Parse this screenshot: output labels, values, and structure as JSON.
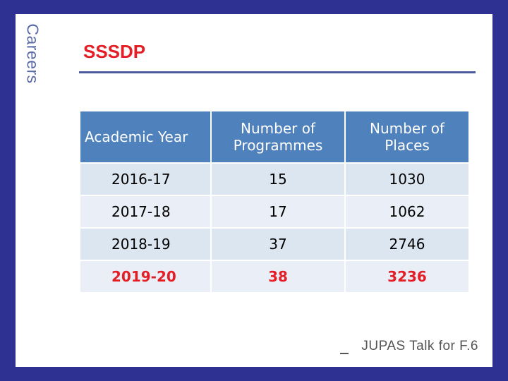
{
  "brand": {
    "side_label": "Careers"
  },
  "slide": {
    "title": "SSSDP"
  },
  "table": {
    "headers": [
      "Academic Year",
      "Number of Programmes",
      "Number of Places"
    ],
    "rows": [
      [
        "2016-17",
        "15",
        "1030"
      ],
      [
        "2017-18",
        "17",
        "1062"
      ],
      [
        "2018-19",
        "37",
        "2746"
      ],
      [
        "2019-20",
        "38",
        "3236"
      ]
    ]
  },
  "footer": {
    "text": "JUPAS Talk for F.6"
  },
  "colors": {
    "accent": "#e41e26",
    "header_bg": "#4f81bd",
    "frame": "#2e3192"
  }
}
